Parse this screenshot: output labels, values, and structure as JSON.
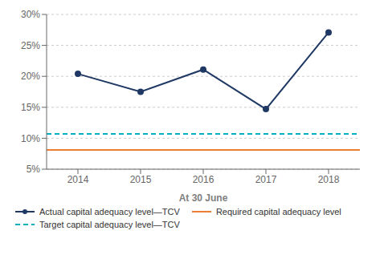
{
  "chart_data": {
    "type": "line",
    "x": [
      2014,
      2015,
      2016,
      2017,
      2018
    ],
    "xlim": [
      2013.5,
      2018.5
    ],
    "xticks": [
      2014,
      2015,
      2016,
      2017,
      2018
    ],
    "xlabel": "At 30 June",
    "ylim": [
      5,
      30
    ],
    "yticks": [
      {
        "value": 5,
        "label": "5%"
      },
      {
        "value": 10,
        "label": "10%"
      },
      {
        "value": 15,
        "label": "15%"
      },
      {
        "value": 20,
        "label": "20%"
      },
      {
        "value": 25,
        "label": "25%"
      },
      {
        "value": 30,
        "label": "30%"
      }
    ],
    "grid": "y",
    "series": [
      {
        "name": "Actual capital adequacy level—TCV",
        "color": "#1F3864",
        "values": [
          20.4,
          17.5,
          21.1,
          14.7,
          27.1
        ],
        "marker": "circle",
        "line_style": "solid"
      },
      {
        "name": "Required capital adequacy level",
        "type": "hline",
        "color": "#ED7D31",
        "value": 8.1,
        "line_style": "solid"
      },
      {
        "name": "Target capital adequacy level—TCV",
        "type": "hline",
        "color": "#00B0C0",
        "value": 10.7,
        "line_style": "dashed"
      }
    ]
  }
}
